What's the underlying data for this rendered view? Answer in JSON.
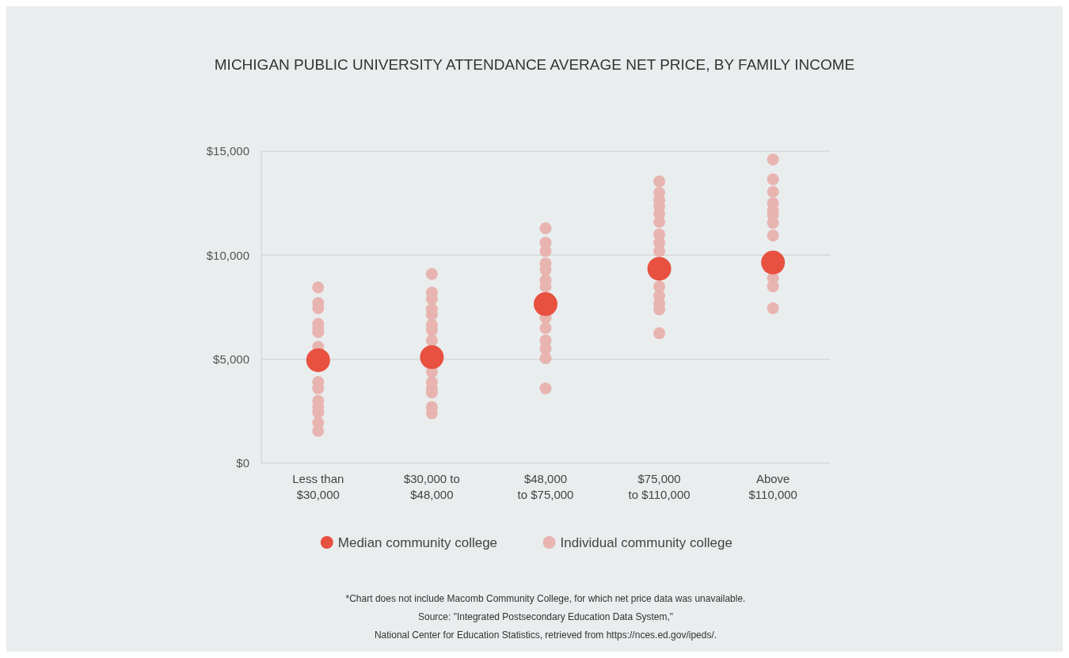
{
  "chart_data": {
    "type": "scatter",
    "title": "MICHIGAN PUBLIC UNIVERSITY ATTENDANCE AVERAGE NET PRICE, BY FAMILY INCOME",
    "categories": [
      "Less than\n$30,000",
      "$30,000 to\n$48,000",
      "$48,000\nto $75,000",
      "$75,000\nto $110,000",
      "Above\n$110,000"
    ],
    "series": [
      {
        "name": "Individual community college",
        "color": "#e8b4b0",
        "marker": "circle",
        "x": [
          "Less than\n$30,000",
          "Less than\n$30,000",
          "Less than\n$30,000",
          "Less than\n$30,000",
          "Less than\n$30,000",
          "Less than\n$30,000",
          "Less than\n$30,000",
          "Less than\n$30,000",
          "Less than\n$30,000",
          "Less than\n$30,000",
          "Less than\n$30,000",
          "Less than\n$30,000",
          "Less than\n$30,000",
          "Less than\n$30,000",
          "$30,000 to\n$48,000",
          "$30,000 to\n$48,000",
          "$30,000 to\n$48,000",
          "$30,000 to\n$48,000",
          "$30,000 to\n$48,000",
          "$30,000 to\n$48,000",
          "$30,000 to\n$48,000",
          "$30,000 to\n$48,000",
          "$30,000 to\n$48,000",
          "$30,000 to\n$48,000",
          "$30,000 to\n$48,000",
          "$30,000 to\n$48,000",
          "$30,000 to\n$48,000",
          "$30,000 to\n$48,000",
          "$48,000\nto $75,000",
          "$48,000\nto $75,000",
          "$48,000\nto $75,000",
          "$48,000\nto $75,000",
          "$48,000\nto $75,000",
          "$48,000\nto $75,000",
          "$48,000\nto $75,000",
          "$48,000\nto $75,000",
          "$48,000\nto $75,000",
          "$48,000\nto $75,000",
          "$48,000\nto $75,000",
          "$48,000\nto $75,000",
          "$48,000\nto $75,000",
          "$75,000\nto $110,000",
          "$75,000\nto $110,000",
          "$75,000\nto $110,000",
          "$75,000\nto $110,000",
          "$75,000\nto $110,000",
          "$75,000\nto $110,000",
          "$75,000\nto $110,000",
          "$75,000\nto $110,000",
          "$75,000\nto $110,000",
          "$75,000\nto $110,000",
          "$75,000\nto $110,000",
          "$75,000\nto $110,000",
          "$75,000\nto $110,000",
          "$75,000\nto $110,000",
          "Above\n$110,000",
          "Above\n$110,000",
          "Above\n$110,000",
          "Above\n$110,000",
          "Above\n$110,000",
          "Above\n$110,000",
          "Above\n$110,000",
          "Above\n$110,000",
          "Above\n$110,000",
          "Above\n$110,000",
          "Above\n$110,000"
        ],
        "values": [
          8450,
          7700,
          7450,
          6700,
          6500,
          6300,
          5600,
          3900,
          3600,
          3000,
          2700,
          2450,
          1950,
          1550,
          9100,
          8200,
          7900,
          7400,
          7150,
          6650,
          6400,
          5900,
          4400,
          3900,
          3600,
          3400,
          2700,
          2400,
          11300,
          10600,
          10200,
          9600,
          9300,
          8800,
          8500,
          7000,
          6500,
          5900,
          5500,
          5050,
          3600,
          13550,
          13000,
          12650,
          12350,
          12000,
          11600,
          11000,
          10600,
          10200,
          8500,
          8050,
          7700,
          7400,
          6250,
          14600,
          13650,
          13050,
          12500,
          12150,
          11950,
          11550,
          10950,
          8900,
          8500,
          7450
        ]
      },
      {
        "name": "Median community college",
        "color": "#e85040",
        "marker": "circle",
        "x": [
          "Less than\n$30,000",
          "$30,000 to\n$48,000",
          "$48,000\nto $75,000",
          "$75,000\nto $110,000",
          "Above\n$110,000"
        ],
        "values": [
          4950,
          5100,
          7650,
          9350,
          9650
        ]
      }
    ],
    "ylim": [
      0,
      15000
    ],
    "yticks": [
      {
        "value": 0,
        "label": "$0"
      },
      {
        "value": 5000,
        "label": "$5,000"
      },
      {
        "value": 10000,
        "label": "$10,000"
      },
      {
        "value": 15000,
        "label": "$15,000"
      }
    ],
    "grid": "y",
    "legend": "bottom",
    "annotations": [
      "*Chart does not include Macomb Community College, for which net price data was unavailable.",
      "Source: \"Integrated Postsecondary Education Data System,\"",
      "National Center for Education Statistics, retrieved from https://nces.ed.gov/ipeds/."
    ]
  }
}
